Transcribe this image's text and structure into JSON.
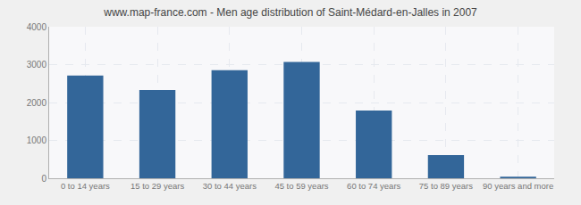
{
  "chart_data": {
    "type": "bar",
    "title": "www.map-france.com - Men age distribution of Saint-Médard-en-Jalles in 2007",
    "categories": [
      "0 to 14 years",
      "15 to 29 years",
      "30 to 44 years",
      "45 to 59 years",
      "60 to 74 years",
      "75 to 89 years",
      "90 years and more"
    ],
    "values": [
      2710,
      2330,
      2850,
      3070,
      1790,
      610,
      40
    ],
    "color": "#336699",
    "ylim": [
      0,
      4000
    ],
    "yticks": [
      0,
      1000,
      2000,
      3000,
      4000
    ],
    "grid": true
  }
}
